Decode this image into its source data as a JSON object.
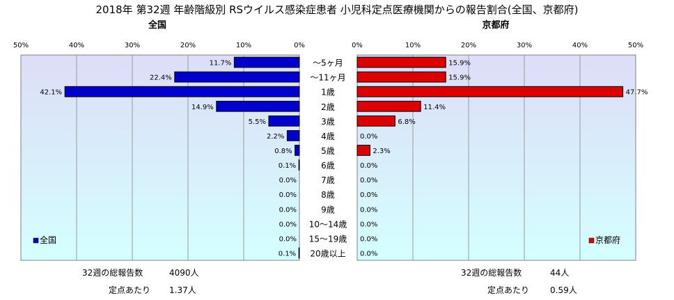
{
  "title": "2018年 第32週 年齢階級別 RSウイルス感染症患者 小児科定点医療機関からの報告割合(全国、京都府)",
  "chart_data": [
    {
      "type": "bar",
      "orientation": "horizontal",
      "title": "全国",
      "series": [
        {
          "name": "全国",
          "values": [
            11.7,
            22.4,
            42.1,
            14.9,
            5.5,
            2.2,
            0.8,
            0.1,
            0.0,
            0.0,
            0.0,
            0.0,
            0.0,
            0.1
          ]
        }
      ],
      "categories": [
        "～5ヶ月",
        "～11ヶ月",
        "1歳",
        "2歳",
        "3歳",
        "4歳",
        "5歳",
        "6歳",
        "7歳",
        "8歳",
        "9歳",
        "10～14歳",
        "15～19歳",
        "20歳以上"
      ],
      "xlim": [
        0,
        50
      ],
      "xticks": [
        "50%",
        "40%",
        "30%",
        "20%",
        "10%",
        "0%"
      ],
      "data_labels": [
        "11.7%",
        "22.4%",
        "42.1%",
        "14.9%",
        "5.5%",
        "2.2%",
        "0.8%",
        "0.1%",
        "0.0%",
        "0.0%",
        "0.0%",
        "0.0%",
        "0.0%",
        "0.1%"
      ],
      "axis_direction": "reversed",
      "color": "#0000cc",
      "grid": true,
      "legend_position": "bottom-left"
    },
    {
      "type": "bar",
      "orientation": "horizontal",
      "title": "京都府",
      "series": [
        {
          "name": "京都府",
          "values": [
            15.9,
            15.9,
            47.7,
            11.4,
            6.8,
            0.0,
            2.3,
            0.0,
            0.0,
            0.0,
            0.0,
            0.0,
            0.0,
            0.0
          ]
        }
      ],
      "categories": [
        "～5ヶ月",
        "～11ヶ月",
        "1歳",
        "2歳",
        "3歳",
        "4歳",
        "5歳",
        "6歳",
        "7歳",
        "8歳",
        "9歳",
        "10～14歳",
        "15～19歳",
        "20歳以上"
      ],
      "xlim": [
        0,
        50
      ],
      "xticks": [
        "0%",
        "10%",
        "20%",
        "30%",
        "40%",
        "50%"
      ],
      "data_labels": [
        "15.9%",
        "15.9%",
        "47.7%",
        "11.4%",
        "6.8%",
        "0.0%",
        "2.3%",
        "0.0%",
        "0.0%",
        "0.0%",
        "0.0%",
        "0.0%",
        "0.0%",
        "0.0%"
      ],
      "color": "#dd0000",
      "grid": true,
      "legend_position": "bottom-right"
    }
  ],
  "footer": {
    "left": {
      "total_label": "32週の総報告数",
      "total_value": "4090人",
      "per_label": "定点あたり",
      "per_value": "1.37人"
    },
    "right": {
      "total_label": "32週の総報告数",
      "total_value": "44人",
      "per_label": "定点あたり",
      "per_value": "0.59人"
    }
  },
  "colors": {
    "plot_top": "#ddddf7",
    "plot_bottom": "#d4ffff",
    "border": "#808080"
  }
}
